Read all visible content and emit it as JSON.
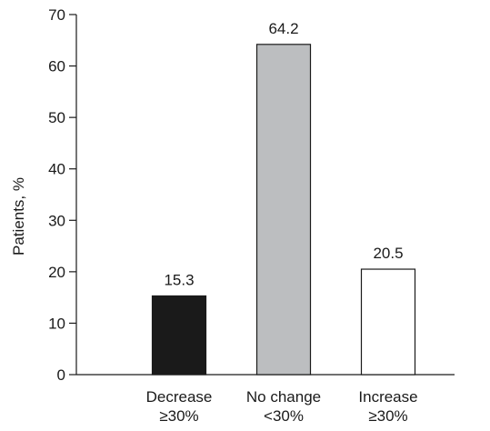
{
  "chart_data": {
    "type": "bar",
    "categories": [
      {
        "line1": "Decrease",
        "line2": "≥30%"
      },
      {
        "line1": "No change",
        "line2": "<30%"
      },
      {
        "line1": "Increase",
        "line2": "≥30%"
      }
    ],
    "values": [
      15.3,
      64.2,
      20.5
    ],
    "value_labels": [
      "15.3",
      "64.2",
      "20.5"
    ],
    "bar_colors": [
      "#1a1a1a",
      "#bcbec0",
      "#ffffff"
    ],
    "bar_stroke": "#1a1a1a",
    "title": "",
    "xlabel": "",
    "ylabel": "Patients, %",
    "ylim": [
      0,
      70
    ],
    "yticks": [
      0,
      10,
      20,
      30,
      40,
      50,
      60,
      70
    ],
    "grid": false,
    "legend": "none"
  }
}
